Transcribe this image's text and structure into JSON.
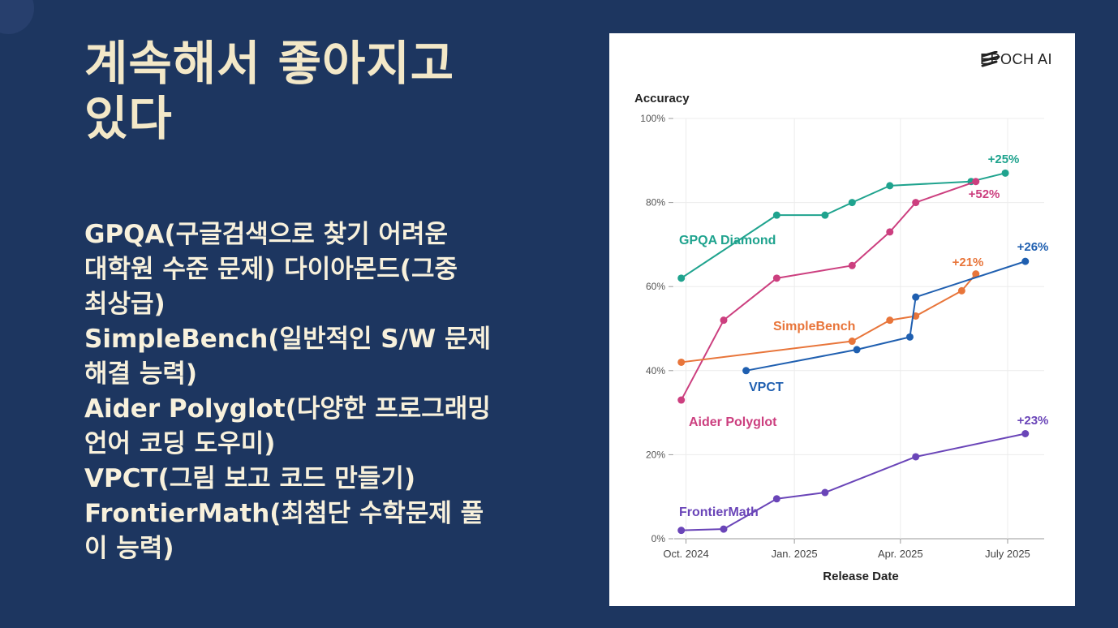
{
  "slide": {
    "title": "계속해서 좋아지고\n있다",
    "bullets": [
      "GPQA(구글검색으로 찾기 어려운\n대학원 수준 문제) 다이아몬드(그중\n최상급)",
      "SimpleBench(일반적인 S/W 문제\n해결 능력)",
      "Aider Polyglot(다양한 프로그래밍\n언어 코딩 도우미)",
      "VPCT(그림 보고 코드 만들기)",
      "FrontierMath(최첨단 수학문제 풀\n이 능력)"
    ]
  },
  "logo": {
    "text": "EPOCH AI",
    "icon": "epoch-ai-logo-icon"
  },
  "chart_data": {
    "type": "line",
    "ylabel": "Accuracy",
    "xlabel": "Release Date",
    "ylim": [
      0,
      100
    ],
    "yticks": [
      "0%",
      "20%",
      "40%",
      "60%",
      "80%",
      "100%"
    ],
    "xticks": [
      {
        "label": "Oct. 2024",
        "date": "2024-09-30"
      },
      {
        "label": "Jan. 2025",
        "date": "2024-12-31"
      },
      {
        "label": "Apr. 2025",
        "date": "2025-03-31"
      },
      {
        "label": "July 2025",
        "date": "2025-06-30"
      }
    ],
    "xlim": [
      "2024-09-20",
      "2025-07-31"
    ],
    "grid": true,
    "series": [
      {
        "name": "GPQA Diamond",
        "color": "#1fa38e",
        "change": "+25%",
        "points": [
          [
            "2024-09-26",
            62
          ],
          [
            "2024-12-16",
            77
          ],
          [
            "2025-01-26",
            77
          ],
          [
            "2025-02-18",
            80
          ],
          [
            "2025-03-22",
            84
          ],
          [
            "2025-05-30",
            85
          ],
          [
            "2025-06-28",
            87
          ]
        ]
      },
      {
        "name": "Aider Polyglot",
        "color": "#cc3f7f",
        "change": "+52%",
        "points": [
          [
            "2024-09-26",
            33
          ],
          [
            "2024-11-01",
            52
          ],
          [
            "2024-12-16",
            62
          ],
          [
            "2025-02-18",
            65
          ],
          [
            "2025-03-22",
            73
          ],
          [
            "2025-04-13",
            80
          ],
          [
            "2025-06-03",
            85
          ]
        ]
      },
      {
        "name": "SimpleBench",
        "color": "#e8753a",
        "change": "+21%",
        "points": [
          [
            "2024-09-26",
            42
          ],
          [
            "2025-02-18",
            47
          ],
          [
            "2025-03-22",
            52
          ],
          [
            "2025-04-13",
            53
          ],
          [
            "2025-05-22",
            59
          ],
          [
            "2025-06-03",
            63
          ]
        ]
      },
      {
        "name": "VPCT",
        "color": "#1f5fb0",
        "change": "+26%",
        "points": [
          [
            "2024-11-20",
            40
          ],
          [
            "2025-02-22",
            45
          ],
          [
            "2025-04-08",
            48
          ],
          [
            "2025-04-13",
            57.5
          ],
          [
            "2025-07-15",
            66
          ]
        ]
      },
      {
        "name": "FrontierMath",
        "color": "#6a45b8",
        "change": "+23%",
        "points": [
          [
            "2024-09-26",
            2
          ],
          [
            "2024-11-01",
            2.3
          ],
          [
            "2024-12-16",
            9.5
          ],
          [
            "2025-01-26",
            11
          ],
          [
            "2025-04-13",
            19.5
          ],
          [
            "2025-07-15",
            25
          ]
        ]
      }
    ]
  }
}
